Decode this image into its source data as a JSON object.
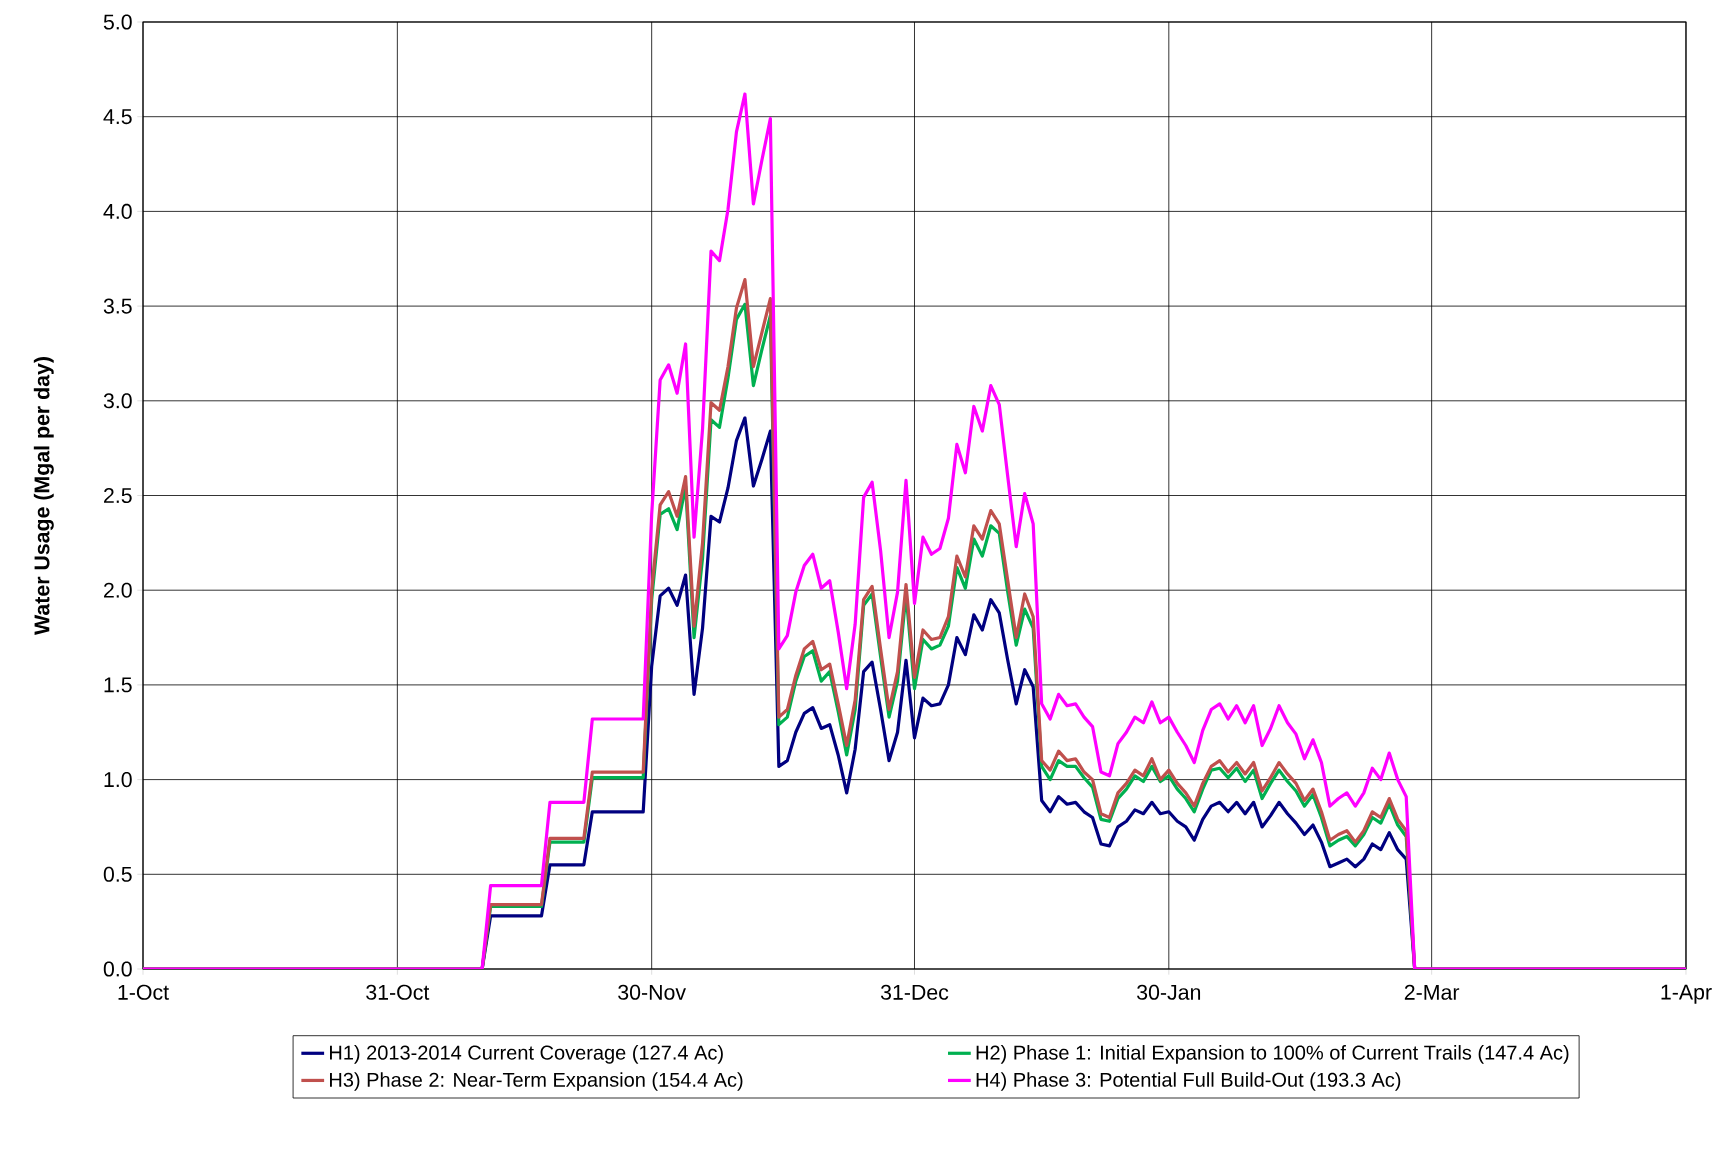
{
  "chart_data": {
    "type": "line",
    "ylabel": "Water Usage (Mgal per day)",
    "x": [
      "2013-10-01",
      "2013-11-10",
      "2013-11-11",
      "2013-11-17",
      "2013-11-18",
      "2013-11-22",
      "2013-11-23",
      "2013-11-29",
      "2013-11-30",
      "2013-12-01",
      "2013-12-02",
      "2013-12-03",
      "2013-12-04",
      "2013-12-05",
      "2013-12-06",
      "2013-12-07",
      "2013-12-08",
      "2013-12-09",
      "2013-12-10",
      "2013-12-11",
      "2013-12-12",
      "2013-12-13",
      "2013-12-14",
      "2013-12-15",
      "2013-12-16",
      "2013-12-17",
      "2013-12-18",
      "2013-12-19",
      "2013-12-20",
      "2013-12-21",
      "2013-12-22",
      "2013-12-23",
      "2013-12-24",
      "2013-12-25",
      "2013-12-26",
      "2013-12-27",
      "2013-12-28",
      "2013-12-29",
      "2013-12-30",
      "2013-12-31",
      "2014-01-01",
      "2014-01-02",
      "2014-01-03",
      "2014-01-04",
      "2014-01-05",
      "2014-01-06",
      "2014-01-07",
      "2014-01-08",
      "2014-01-09",
      "2014-01-10",
      "2014-01-11",
      "2014-01-12",
      "2014-01-13",
      "2014-01-14",
      "2014-01-15",
      "2014-01-16",
      "2014-01-17",
      "2014-01-18",
      "2014-01-19",
      "2014-01-20",
      "2014-01-21",
      "2014-01-22",
      "2014-01-23",
      "2014-01-24",
      "2014-01-25",
      "2014-01-26",
      "2014-01-27",
      "2014-01-28",
      "2014-01-29",
      "2014-01-30",
      "2014-01-31",
      "2014-02-01",
      "2014-02-02",
      "2014-02-03",
      "2014-02-04",
      "2014-02-05",
      "2014-02-06",
      "2014-02-07",
      "2014-02-08",
      "2014-02-09",
      "2014-02-10",
      "2014-02-11",
      "2014-02-12",
      "2014-02-13",
      "2014-02-14",
      "2014-02-15",
      "2014-02-16",
      "2014-02-17",
      "2014-02-18",
      "2014-02-19",
      "2014-02-20",
      "2014-02-21",
      "2014-02-22",
      "2014-02-23",
      "2014-02-24",
      "2014-02-25",
      "2014-02-26",
      "2014-02-27",
      "2014-02-28",
      "2014-04-01"
    ],
    "series": [
      {
        "name": "H1) 2013-2014 Current Coverage (127.4 Ac)",
        "color": "#000080",
        "values": [
          0,
          0,
          0.28,
          0.28,
          0.55,
          0.55,
          0.83,
          0.83,
          1.6,
          1.97,
          2.01,
          1.92,
          2.08,
          1.45,
          1.8,
          2.39,
          2.36,
          2.54,
          2.79,
          2.91,
          2.55,
          2.69,
          2.84,
          1.07,
          1.1,
          1.25,
          1.35,
          1.38,
          1.27,
          1.29,
          1.13,
          0.93,
          1.16,
          1.57,
          1.62,
          1.37,
          1.1,
          1.25,
          1.63,
          1.22,
          1.43,
          1.39,
          1.4,
          1.5,
          1.75,
          1.66,
          1.87,
          1.79,
          1.95,
          1.88,
          1.63,
          1.4,
          1.58,
          1.49,
          0.89,
          0.83,
          0.91,
          0.87,
          0.88,
          0.83,
          0.8,
          0.66,
          0.65,
          0.75,
          0.78,
          0.84,
          0.82,
          0.88,
          0.82,
          0.83,
          0.78,
          0.75,
          0.68,
          0.79,
          0.86,
          0.88,
          0.83,
          0.88,
          0.82,
          0.88,
          0.75,
          0.81,
          0.88,
          0.82,
          0.77,
          0.71,
          0.76,
          0.67,
          0.54,
          0.56,
          0.58,
          0.54,
          0.58,
          0.66,
          0.63,
          0.72,
          0.63,
          0.58,
          0,
          0
        ]
      },
      {
        "name": "H2) Phase 1: Initial Expansion to 100% of Current Trails (147.4 Ac)",
        "color": "#00b050",
        "values": [
          0,
          0,
          0.33,
          0.33,
          0.67,
          0.67,
          1.01,
          1.01,
          1.95,
          2.4,
          2.43,
          2.32,
          2.55,
          1.75,
          2.17,
          2.9,
          2.86,
          3.12,
          3.43,
          3.51,
          3.08,
          3.27,
          3.45,
          1.29,
          1.33,
          1.52,
          1.65,
          1.68,
          1.52,
          1.57,
          1.36,
          1.13,
          1.37,
          1.92,
          1.98,
          1.65,
          1.33,
          1.52,
          1.98,
          1.48,
          1.74,
          1.69,
          1.71,
          1.81,
          2.12,
          2.01,
          2.27,
          2.18,
          2.34,
          2.3,
          1.99,
          1.71,
          1.9,
          1.8,
          1.07,
          1.0,
          1.1,
          1.07,
          1.07,
          1.01,
          0.96,
          0.79,
          0.78,
          0.9,
          0.95,
          1.02,
          0.99,
          1.07,
          0.99,
          1.02,
          0.95,
          0.9,
          0.83,
          0.95,
          1.05,
          1.06,
          1.01,
          1.06,
          0.99,
          1.05,
          0.9,
          0.98,
          1.05,
          0.99,
          0.94,
          0.86,
          0.92,
          0.8,
          0.65,
          0.68,
          0.7,
          0.65,
          0.71,
          0.8,
          0.77,
          0.87,
          0.76,
          0.7,
          0,
          0
        ]
      },
      {
        "name": "H3) Phase 2: Near-Term Expansion (154.4 Ac)",
        "color": "#c0504d",
        "values": [
          0,
          0,
          0.34,
          0.34,
          0.69,
          0.69,
          1.04,
          1.04,
          2.0,
          2.45,
          2.52,
          2.39,
          2.6,
          1.81,
          2.25,
          2.99,
          2.95,
          3.18,
          3.49,
          3.64,
          3.18,
          3.36,
          3.54,
          1.33,
          1.37,
          1.55,
          1.69,
          1.73,
          1.58,
          1.61,
          1.4,
          1.18,
          1.42,
          1.95,
          2.02,
          1.69,
          1.37,
          1.57,
          2.03,
          1.54,
          1.79,
          1.74,
          1.75,
          1.86,
          2.18,
          2.07,
          2.34,
          2.27,
          2.42,
          2.35,
          2.05,
          1.75,
          1.98,
          1.86,
          1.1,
          1.05,
          1.15,
          1.1,
          1.11,
          1.04,
          1.0,
          0.82,
          0.8,
          0.93,
          0.98,
          1.05,
          1.02,
          1.11,
          1.0,
          1.05,
          0.98,
          0.93,
          0.86,
          0.98,
          1.07,
          1.1,
          1.04,
          1.09,
          1.03,
          1.09,
          0.94,
          1.01,
          1.09,
          1.03,
          0.98,
          0.89,
          0.95,
          0.83,
          0.68,
          0.71,
          0.73,
          0.67,
          0.73,
          0.83,
          0.8,
          0.9,
          0.79,
          0.73,
          0,
          0
        ]
      },
      {
        "name": "H4) Phase 3: Potential Full Build-Out (193.3 Ac)",
        "color": "#ff00ff",
        "values": [
          0,
          0,
          0.44,
          0.44,
          0.88,
          0.88,
          1.32,
          1.32,
          2.4,
          3.11,
          3.19,
          3.04,
          3.3,
          2.28,
          2.85,
          3.79,
          3.74,
          4.01,
          4.42,
          4.62,
          4.04,
          4.27,
          4.49,
          1.69,
          1.76,
          1.99,
          2.13,
          2.19,
          2.01,
          2.05,
          1.78,
          1.48,
          1.82,
          2.49,
          2.57,
          2.21,
          1.75,
          1.99,
          2.58,
          1.93,
          2.28,
          2.19,
          2.22,
          2.38,
          2.77,
          2.62,
          2.97,
          2.84,
          3.08,
          2.98,
          2.6,
          2.23,
          2.51,
          2.35,
          1.4,
          1.32,
          1.45,
          1.39,
          1.4,
          1.33,
          1.28,
          1.04,
          1.02,
          1.19,
          1.25,
          1.33,
          1.3,
          1.41,
          1.3,
          1.33,
          1.25,
          1.18,
          1.09,
          1.26,
          1.37,
          1.4,
          1.32,
          1.39,
          1.3,
          1.39,
          1.18,
          1.27,
          1.39,
          1.3,
          1.24,
          1.11,
          1.21,
          1.09,
          0.86,
          0.9,
          0.93,
          0.86,
          0.93,
          1.06,
          1.0,
          1.14,
          1.0,
          0.91,
          0,
          0
        ]
      }
    ],
    "xlim": [
      "2013-10-01",
      "2014-04-01"
    ],
    "xticks": [
      {
        "value": "2013-10-01",
        "label": "1-Oct"
      },
      {
        "value": "2013-10-31",
        "label": "31-Oct"
      },
      {
        "value": "2013-11-30",
        "label": "30-Nov"
      },
      {
        "value": "2013-12-31",
        "label": "31-Dec"
      },
      {
        "value": "2014-01-30",
        "label": "30-Jan"
      },
      {
        "value": "2014-03-02",
        "label": "2-Mar"
      },
      {
        "value": "2014-04-01",
        "label": "1-Apr"
      }
    ],
    "ylim": [
      0,
      5
    ],
    "yticks": [
      {
        "value": 0,
        "label": "0.0"
      },
      {
        "value": 0.5,
        "label": "0.5"
      },
      {
        "value": 1,
        "label": "1.0"
      },
      {
        "value": 1.5,
        "label": "1.5"
      },
      {
        "value": 2,
        "label": "2.0"
      },
      {
        "value": 2.5,
        "label": "2.5"
      },
      {
        "value": 3,
        "label": "3.0"
      },
      {
        "value": 3.5,
        "label": "3.5"
      },
      {
        "value": 4,
        "label": "4.0"
      },
      {
        "value": 4.5,
        "label": "4.5"
      },
      {
        "value": 5,
        "label": "5.0"
      }
    ],
    "grid": true,
    "legend": "bottom",
    "line_style": "solid"
  }
}
